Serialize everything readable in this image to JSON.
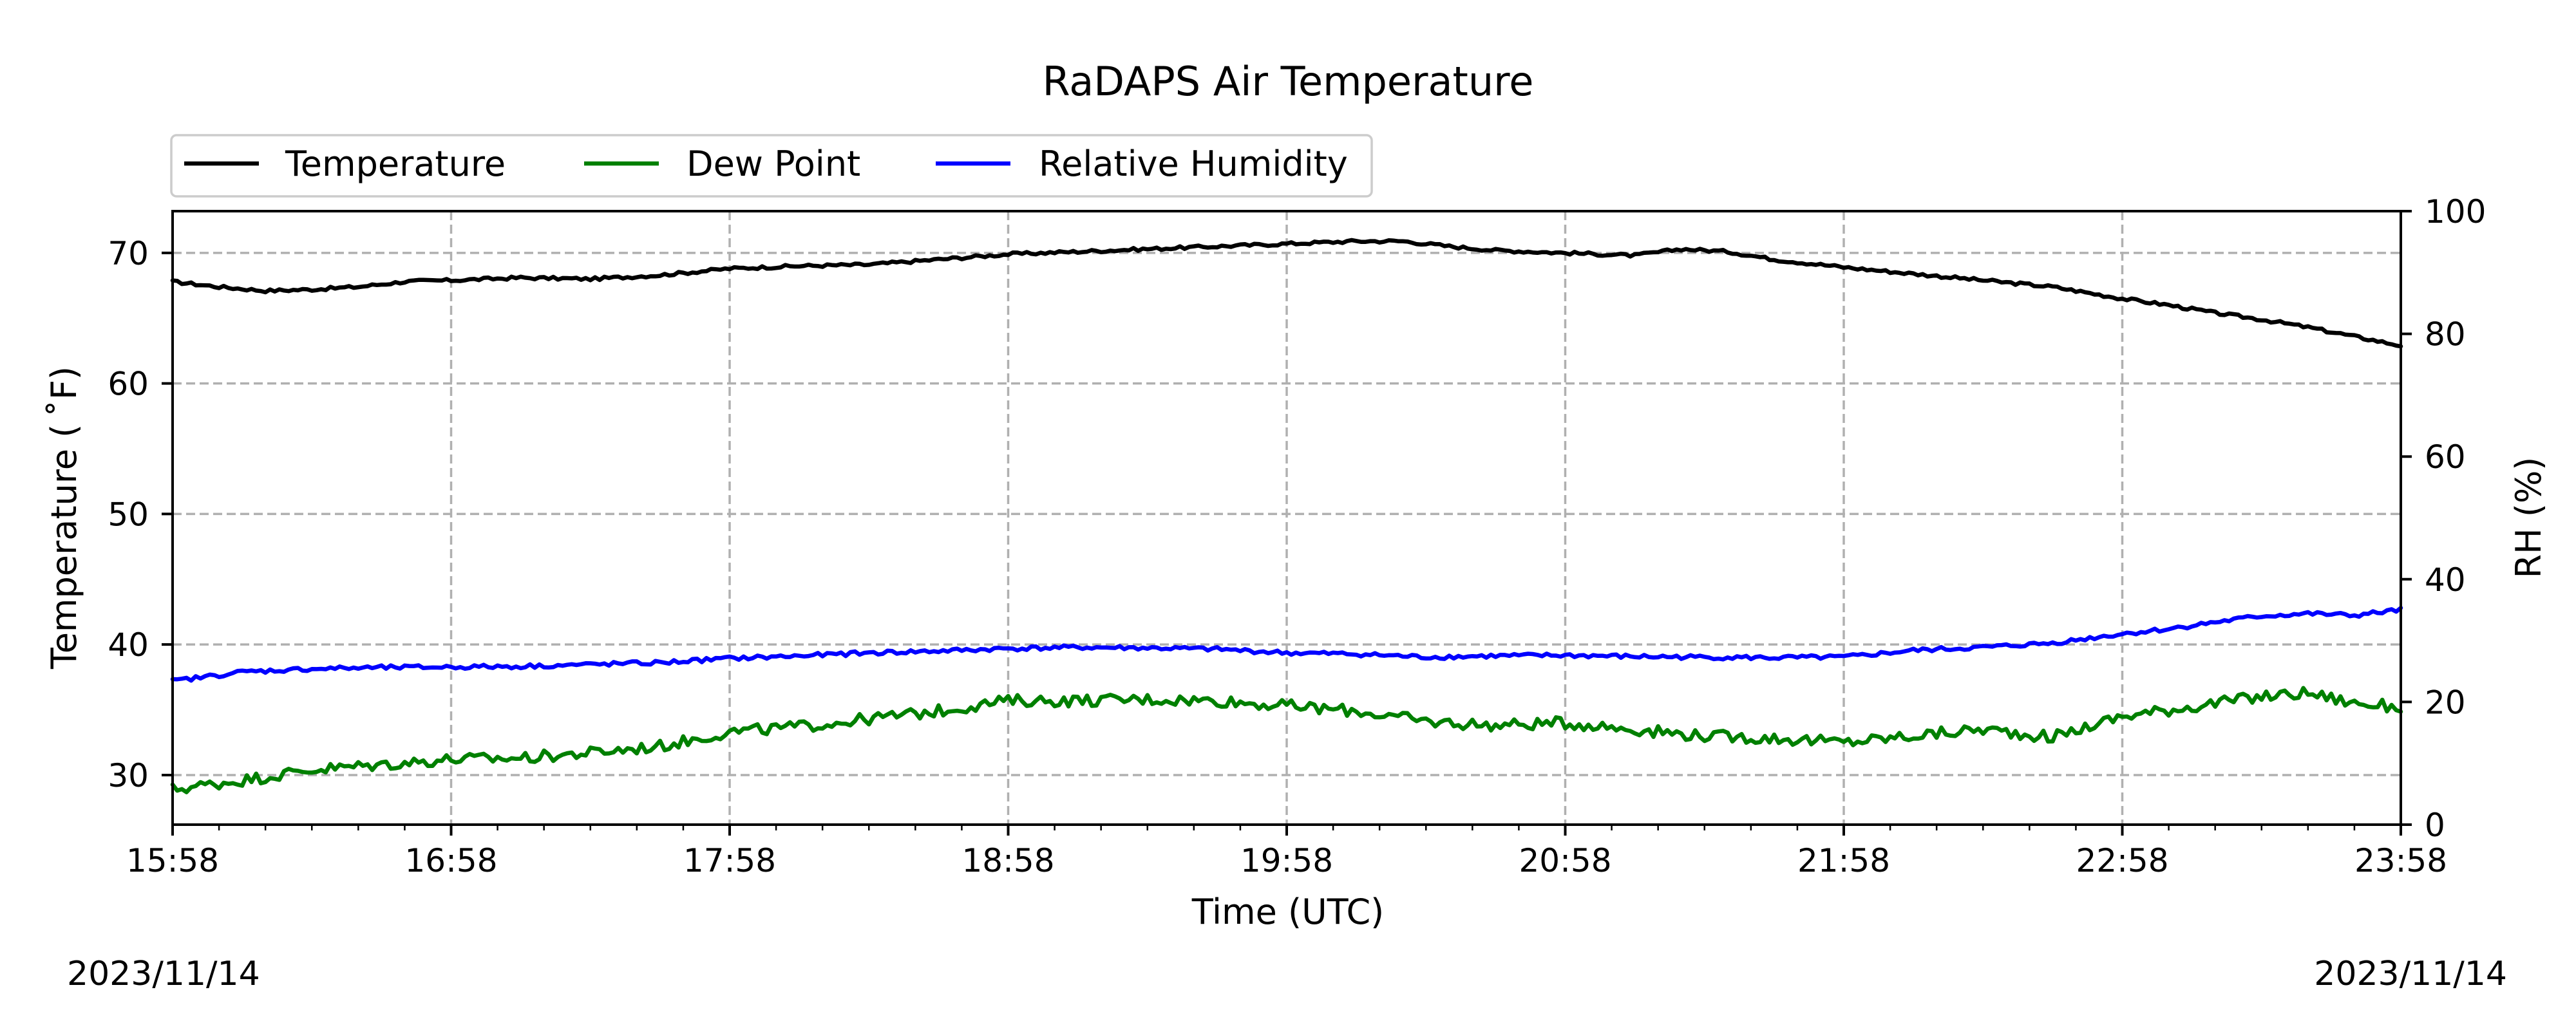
{
  "chart_data": {
    "type": "line",
    "title": "RaDAPS Air Temperature",
    "xlabel": "Time (UTC)",
    "ylabel": "Temperature ($^\\circ$F)",
    "ylabel_display": "Temperature ( ˚F)",
    "y2label": "RH (%)",
    "x_start_date": "2023/11/14",
    "x_end_date": "2023/11/14",
    "x_ticks": [
      "15:58",
      "16:58",
      "17:58",
      "18:58",
      "19:58",
      "20:58",
      "21:58",
      "22:58",
      "23:58"
    ],
    "xlim": [
      "15:58",
      "23:58"
    ],
    "ylim": [
      26.2,
      73.2
    ],
    "y_ticks": [
      30,
      40,
      50,
      60,
      70
    ],
    "y2lim": [
      0,
      100
    ],
    "y2_ticks": [
      0,
      20,
      40,
      60,
      80,
      100
    ],
    "grid": true,
    "legend_position": "top-left, above plot",
    "series": [
      {
        "name": "Temperature",
        "axis": "left",
        "color": "#000000",
        "x": [
          "15:58",
          "16:08",
          "16:18",
          "16:28",
          "16:38",
          "16:48",
          "16:58",
          "17:13",
          "17:28",
          "17:43",
          "17:58",
          "18:13",
          "18:28",
          "18:43",
          "18:58",
          "19:13",
          "19:28",
          "19:43",
          "19:58",
          "20:13",
          "20:23",
          "20:33",
          "20:43",
          "20:58",
          "21:13",
          "21:23",
          "21:33",
          "21:43",
          "21:58",
          "22:13",
          "22:28",
          "22:43",
          "22:58",
          "23:08",
          "23:18",
          "23:28",
          "23:38",
          "23:48",
          "23:58"
        ],
        "values": [
          67.8,
          67.4,
          67.1,
          67.2,
          67.4,
          67.8,
          67.9,
          68.1,
          68.0,
          68.3,
          68.8,
          69.0,
          69.1,
          69.5,
          69.9,
          70.1,
          70.3,
          70.5,
          70.7,
          70.9,
          70.9,
          70.5,
          70.2,
          70.0,
          69.8,
          70.3,
          70.1,
          69.5,
          68.9,
          68.4,
          67.9,
          67.4,
          66.5,
          66.0,
          65.4,
          64.9,
          64.3,
          63.6,
          62.9
        ]
      },
      {
        "name": "Dew Point",
        "axis": "left",
        "color": "#008000",
        "x": [
          "15:58",
          "16:13",
          "16:28",
          "16:43",
          "16:58",
          "17:13",
          "17:28",
          "17:43",
          "17:58",
          "18:13",
          "18:28",
          "18:43",
          "18:58",
          "19:13",
          "19:28",
          "19:43",
          "19:58",
          "20:13",
          "20:28",
          "20:43",
          "20:58",
          "21:13",
          "21:28",
          "21:43",
          "21:58",
          "22:13",
          "22:28",
          "22:43",
          "22:58",
          "23:08",
          "23:18",
          "23:28",
          "23:38",
          "23:48",
          "23:58"
        ],
        "values": [
          28.9,
          29.6,
          30.4,
          30.8,
          31.2,
          31.3,
          31.7,
          32.2,
          33.3,
          33.7,
          34.3,
          34.9,
          35.7,
          35.7,
          35.8,
          35.7,
          35.3,
          34.9,
          34.1,
          33.8,
          34.0,
          33.5,
          33.0,
          32.8,
          32.5,
          33.0,
          33.5,
          32.9,
          34.5,
          35.0,
          35.5,
          36.0,
          36.3,
          35.5,
          35.2
        ]
      },
      {
        "name": "Relative Humidity",
        "axis": "right",
        "color": "#0000ff",
        "x": [
          "15:58",
          "16:13",
          "16:28",
          "16:43",
          "16:58",
          "17:13",
          "17:28",
          "17:43",
          "17:58",
          "18:13",
          "18:28",
          "18:43",
          "18:58",
          "19:13",
          "19:28",
          "19:43",
          "19:58",
          "20:13",
          "20:28",
          "20:43",
          "20:58",
          "21:13",
          "21:28",
          "21:43",
          "21:58",
          "22:13",
          "22:28",
          "22:43",
          "22:58",
          "23:08",
          "23:18",
          "23:28",
          "23:38",
          "23:48",
          "23:58"
        ],
        "values": [
          23.4,
          24.9,
          25.4,
          25.6,
          25.7,
          25.8,
          26.1,
          26.4,
          27.1,
          27.5,
          28.0,
          28.3,
          28.7,
          28.9,
          28.8,
          28.6,
          28.0,
          27.8,
          27.3,
          27.5,
          27.6,
          27.4,
          27.3,
          27.2,
          27.3,
          28.4,
          28.9,
          29.6,
          31.1,
          31.9,
          33.0,
          34.0,
          34.4,
          34.1,
          35.0
        ]
      }
    ]
  }
}
